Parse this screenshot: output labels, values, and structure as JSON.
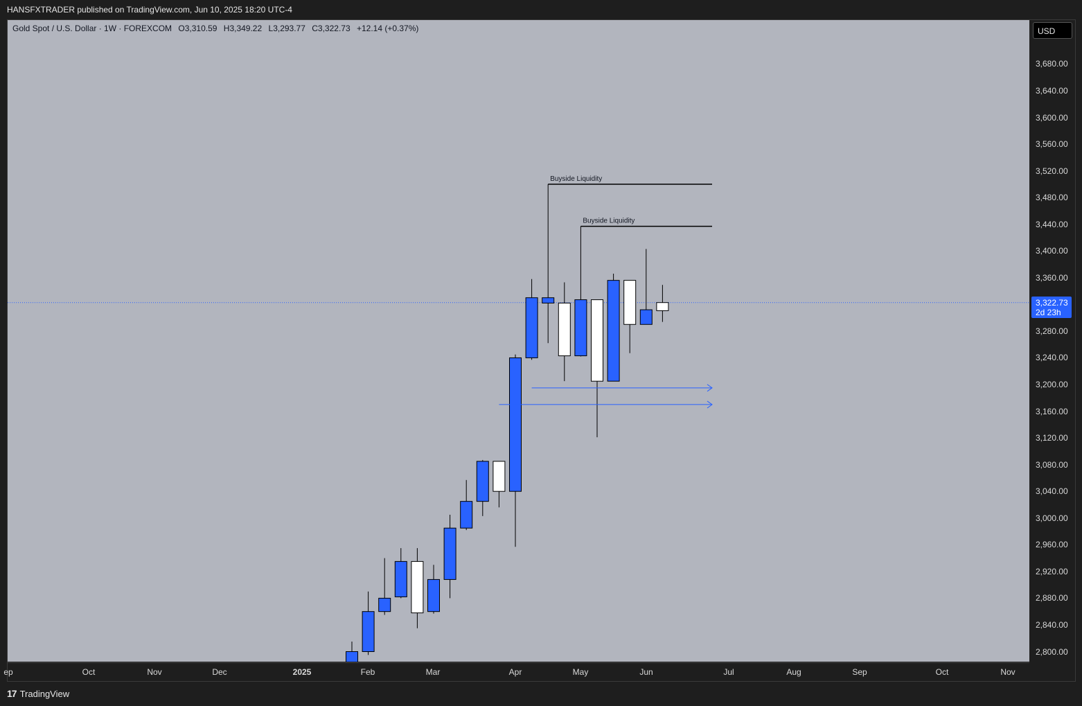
{
  "header": {
    "publisher_line": "HANSFXTRADER published on TradingView.com, Jun 10, 2025 18:20 UTC-4"
  },
  "legend": {
    "symbol": "Gold Spot / U.S. Dollar · 1W · FOREXCOM",
    "open": "O3,310.59",
    "high": "H3,349.22",
    "low": "L3,293.77",
    "close": "C3,322.73",
    "change": "+12.14 (+0.37%)"
  },
  "currency_button": "USD",
  "last_price": {
    "price": "3,322.73",
    "countdown": "2d 23h",
    "value": 3322.73
  },
  "price_ticks": [
    "3,680.00",
    "3,640.00",
    "3,600.00",
    "3,560.00",
    "3,520.00",
    "3,480.00",
    "3,440.00",
    "3,400.00",
    "3,360.00",
    "3,280.00",
    "3,240.00",
    "3,200.00",
    "3,160.00",
    "3,120.00",
    "3,080.00",
    "3,040.00",
    "3,000.00",
    "2,960.00",
    "2,920.00",
    "2,880.00",
    "2,840.00",
    "2,800.00"
  ],
  "time_ticks": [
    "ep",
    "Oct",
    "Nov",
    "Dec",
    "2025",
    "Feb",
    "Mar",
    "Apr",
    "May",
    "Jun",
    "Jul",
    "Aug",
    "Sep",
    "Oct",
    "Nov"
  ],
  "footer": {
    "brand": "TradingView",
    "logo_mark": "17"
  },
  "colors": {
    "bull": "#ffffff",
    "bear": "#2962ff",
    "background": "#b2b5be",
    "arrow": "#2962ff",
    "price_line": "#2962ff"
  },
  "chart_data": {
    "type": "candlestick",
    "symbol": "Gold Spot / U.S. Dollar",
    "timeframe": "1W",
    "ylim": [
      2780,
      3730
    ],
    "candles": [
      {
        "o": 2800,
        "h": 2815,
        "l": 2775,
        "c": 2780
      },
      {
        "o": 2860,
        "h": 2890,
        "l": 2795,
        "c": 2800
      },
      {
        "o": 2880,
        "h": 2940,
        "l": 2855,
        "c": 2860
      },
      {
        "o": 2935,
        "h": 2955,
        "l": 2880,
        "c": 2882
      },
      {
        "o": 2858,
        "h": 2955,
        "l": 2835,
        "c": 2935
      },
      {
        "o": 2908,
        "h": 2930,
        "l": 2857,
        "c": 2860
      },
      {
        "o": 2985,
        "h": 3005,
        "l": 2880,
        "c": 2908
      },
      {
        "o": 3025,
        "h": 3057,
        "l": 2982,
        "c": 2985
      },
      {
        "o": 3085,
        "h": 3087,
        "l": 3003,
        "c": 3025
      },
      {
        "o": 3040,
        "h": 3085,
        "l": 3016,
        "c": 3085
      },
      {
        "o": 3240,
        "h": 3245,
        "l": 2957,
        "c": 3040
      },
      {
        "o": 3330,
        "h": 3358,
        "l": 3237,
        "c": 3240
      },
      {
        "o": 3330,
        "h": 3500,
        "l": 3262,
        "c": 3322
      },
      {
        "o": 3243,
        "h": 3353,
        "l": 3205,
        "c": 3322
      },
      {
        "o": 3327,
        "h": 3437,
        "l": 3242,
        "c": 3243
      },
      {
        "o": 3205,
        "h": 3327,
        "l": 3121,
        "c": 3327
      },
      {
        "o": 3356,
        "h": 3366,
        "l": 3205,
        "c": 3205
      },
      {
        "o": 3290,
        "h": 3356,
        "l": 3247,
        "c": 3356
      },
      {
        "o": 3312,
        "h": 3403,
        "l": 3290,
        "c": 3290
      },
      {
        "o": 3310.59,
        "h": 3349.22,
        "l": 3293.77,
        "c": 3322.73
      }
    ],
    "annotations": [
      {
        "type": "horizontal-line",
        "label": "Buyside Liquidity",
        "price": 3500
      },
      {
        "type": "horizontal-line",
        "label": "Buyside Liquidity",
        "price": 3437
      },
      {
        "type": "arrow",
        "price": 3195
      },
      {
        "type": "arrow",
        "price": 3170
      }
    ]
  }
}
